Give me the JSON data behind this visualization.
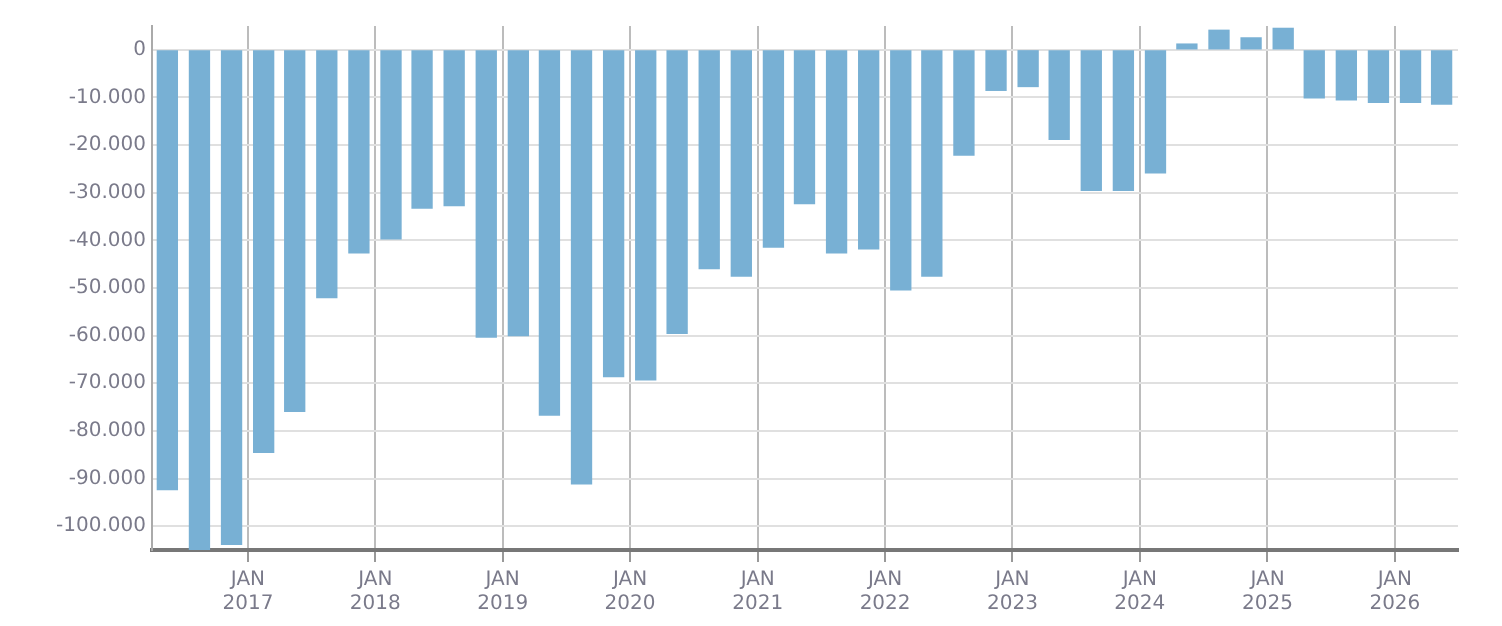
{
  "chart_data": {
    "type": "bar",
    "color": "#78b0d4",
    "x": [
      "2016-05-15",
      "2016-08-15",
      "2016-11-15",
      "2017-02-15",
      "2017-05-15",
      "2017-08-15",
      "2017-11-15",
      "2018-02-15",
      "2018-05-15",
      "2018-08-15",
      "2018-11-15",
      "2019-02-15",
      "2019-05-15",
      "2019-08-15",
      "2019-11-15",
      "2020-02-15",
      "2020-05-15",
      "2020-08-15",
      "2020-11-15",
      "2021-02-15",
      "2021-05-15",
      "2021-08-15",
      "2021-11-15",
      "2022-02-15",
      "2022-05-15",
      "2022-08-15",
      "2022-11-15",
      "2023-02-15",
      "2023-05-15",
      "2023-08-15",
      "2023-11-15",
      "2024-02-15",
      "2024-05-15",
      "2024-08-15",
      "2024-11-15",
      "2025-02-15",
      "2025-05-15",
      "2025-08-15",
      "2025-11-15",
      "2026-02-15",
      "2026-05-15"
    ],
    "values": [
      -92300,
      -105000,
      -103800,
      -84500,
      -75900,
      -52000,
      -42600,
      -39700,
      -33200,
      -32700,
      -60300,
      -60000,
      -76700,
      -91100,
      -68600,
      -69300,
      -59500,
      -45900,
      -47500,
      -41400,
      -32300,
      -42600,
      -41800,
      -50400,
      -47500,
      -22100,
      -8500,
      -7700,
      -18800,
      -29500,
      -29500,
      -25800,
      1200,
      4100,
      2500,
      4500,
      -10100,
      -10500,
      -11000,
      -11000,
      -11400
    ],
    "xlim": [
      "2016-04",
      "2026-07"
    ],
    "xticks": [
      {
        "value": "2017-01",
        "label": "JAN 2017"
      },
      {
        "value": "2018-01",
        "label": "JAN 2018"
      },
      {
        "value": "2019-01",
        "label": "JAN 2019"
      },
      {
        "value": "2020-01",
        "label": "JAN 2020"
      },
      {
        "value": "2021-01",
        "label": "JAN 2021"
      },
      {
        "value": "2022-01",
        "label": "JAN 2022"
      },
      {
        "value": "2023-01",
        "label": "JAN 2023"
      },
      {
        "value": "2024-01",
        "label": "JAN 2024"
      },
      {
        "value": "2025-01",
        "label": "JAN 2025"
      },
      {
        "value": "2026-01",
        "label": "JAN 2026"
      }
    ],
    "ylim": [
      -105000,
      5000
    ],
    "yticks": [
      0,
      {
        "value": -10000,
        "label": "-10.000"
      },
      {
        "value": -20000,
        "label": "-20.000"
      },
      {
        "value": -30000,
        "label": "-30.000"
      },
      {
        "value": -40000,
        "label": "-40.000"
      },
      {
        "value": -50000,
        "label": "-50.000"
      },
      {
        "value": -60000,
        "label": "-60.000"
      },
      {
        "value": -70000,
        "label": "-70.000"
      },
      {
        "value": -80000,
        "label": "-80.000"
      },
      {
        "value": -90000,
        "label": "-90.000"
      },
      {
        "value": -100000,
        "label": "-100.000"
      }
    ],
    "grid": true,
    "legend": false
  }
}
